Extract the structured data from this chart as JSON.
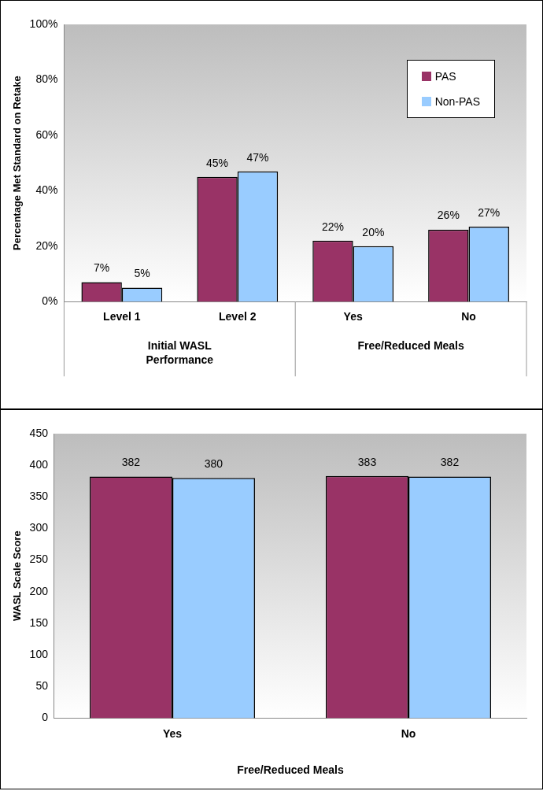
{
  "chart_data": [
    {
      "type": "bar",
      "categories": [
        "Level 1",
        "Level 2",
        "Yes",
        "No"
      ],
      "ylabel": "Percentage Met Standard on Retake",
      "ylim": [
        0,
        100
      ],
      "yticks": [
        {
          "value": 0,
          "label": "0%"
        },
        {
          "value": 20,
          "label": "20%"
        },
        {
          "value": 40,
          "label": "40%"
        },
        {
          "value": 60,
          "label": "60%"
        },
        {
          "value": 80,
          "label": "80%"
        },
        {
          "value": 100,
          "label": "100%"
        }
      ],
      "legend": "top right",
      "annotations": [
        "Initial WASL Performance",
        "Free/Reduced Meals"
      ],
      "series": [
        {
          "name": "PAS",
          "color": "#993366",
          "values": [
            7,
            45,
            22,
            26
          ],
          "value_labels": [
            "7%",
            "45%",
            "22%",
            "26%"
          ]
        },
        {
          "name": "Non-PAS",
          "color": "#99ccff",
          "values": [
            5,
            47,
            20,
            27
          ],
          "value_labels": [
            "5%",
            "47%",
            "20%",
            "27%"
          ]
        }
      ]
    },
    {
      "type": "bar",
      "categories": [
        "Yes",
        "No"
      ],
      "xlabel": "Free/Reduced Meals",
      "ylabel": "WASL Scale Score",
      "ylim": [
        0,
        450
      ],
      "yticks": [
        0,
        50,
        100,
        150,
        200,
        250,
        300,
        350,
        400,
        450
      ],
      "data_labels": true,
      "series": [
        {
          "color": "#993366",
          "values": [
            382,
            383
          ]
        },
        {
          "color": "#99ccff",
          "values": [
            380,
            382
          ]
        }
      ]
    }
  ]
}
